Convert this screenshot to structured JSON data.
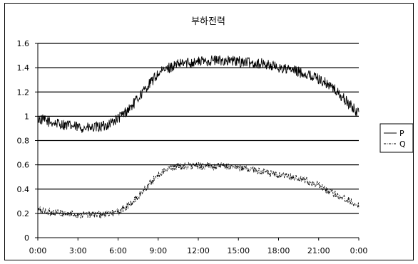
{
  "chart_data": {
    "type": "line",
    "title": "부하전력",
    "xlabel": "",
    "ylabel": "",
    "x_ticks": [
      "0:00",
      "3:00",
      "6:00",
      "9:00",
      "12:00",
      "15:00",
      "18:00",
      "21:00",
      "0:00"
    ],
    "xlim_hours": [
      0,
      24
    ],
    "ylim": [
      0,
      1.6
    ],
    "y_ticks": [
      "0",
      "0.2",
      "0.4",
      "0.6",
      "0.8",
      "1",
      "1.2",
      "1.4",
      "1.6"
    ],
    "grid": "horizontal",
    "legend_position": "right",
    "series": [
      {
        "name": "P",
        "line_style": "solid",
        "x_hours": [
          0,
          1,
          2,
          3,
          4,
          5,
          6,
          7,
          8,
          9,
          10,
          11,
          12,
          13,
          14,
          15,
          16,
          17,
          18,
          19,
          20,
          21,
          22,
          23,
          24
        ],
        "values": [
          0.98,
          0.95,
          0.93,
          0.91,
          0.9,
          0.92,
          0.98,
          1.08,
          1.22,
          1.35,
          1.41,
          1.44,
          1.45,
          1.46,
          1.46,
          1.45,
          1.44,
          1.43,
          1.4,
          1.38,
          1.35,
          1.31,
          1.24,
          1.13,
          1.02
        ]
      },
      {
        "name": "Q",
        "line_style": "dash-dot",
        "x_hours": [
          0,
          1,
          2,
          3,
          4,
          5,
          6,
          7,
          8,
          9,
          10,
          11,
          12,
          13,
          14,
          15,
          16,
          17,
          18,
          19,
          20,
          21,
          22,
          23,
          24
        ],
        "values": [
          0.23,
          0.21,
          0.2,
          0.19,
          0.19,
          0.19,
          0.21,
          0.28,
          0.4,
          0.52,
          0.58,
          0.59,
          0.59,
          0.59,
          0.59,
          0.58,
          0.56,
          0.54,
          0.51,
          0.5,
          0.47,
          0.43,
          0.37,
          0.32,
          0.27
        ]
      }
    ]
  },
  "colors": {
    "line": "#000000",
    "grid": "#000000",
    "background": "#ffffff"
  }
}
